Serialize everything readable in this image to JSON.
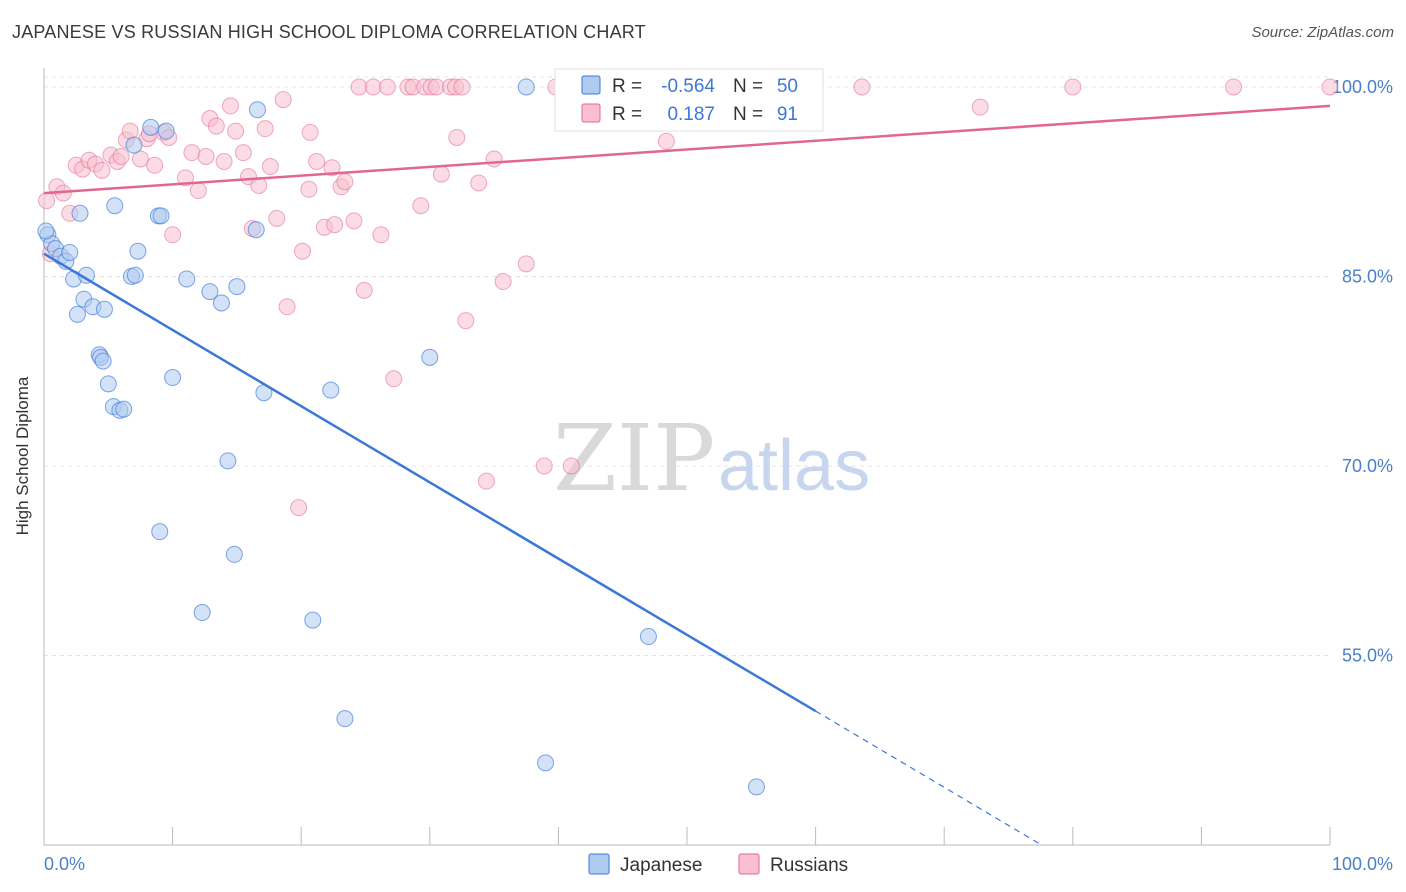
{
  "title": "JAPANESE VS RUSSIAN HIGH SCHOOL DIPLOMA CORRELATION CHART",
  "source": "Source: ZipAtlas.com",
  "colors": {
    "japanese": "#3b78d8",
    "russians": "#e2678f",
    "japanese_fill": "#aecbf0",
    "russians_fill": "#f7bfd0",
    "tick": "#4a7fc9"
  },
  "legend": {
    "rows": [
      {
        "label_r": "R =",
        "r": "-0.564",
        "label_n": "N =",
        "n": "50"
      },
      {
        "label_r": "R =",
        "r": "0.187",
        "label_n": "N =",
        "n": "91"
      }
    ],
    "bottom": [
      "Japanese",
      "Russians"
    ]
  },
  "watermark": {
    "zip": "ZIP",
    "atlas": "atlas"
  },
  "chart_data": {
    "type": "scatter",
    "ylabel": "High School Diploma",
    "xlabel": "",
    "xlim": [
      0,
      100
    ],
    "ylim": [
      40,
      101.5
    ],
    "x_tick_labels": [
      "0.0%",
      "100.0%"
    ],
    "y_ticks": [
      55,
      70,
      85,
      100
    ],
    "y_tick_labels": [
      "55.0%",
      "70.0%",
      "85.0%",
      "100.0%"
    ],
    "grid": true,
    "series": [
      {
        "name": "Japanese",
        "trend": {
          "x0": 0,
          "y0": 86.8,
          "x1": 60,
          "y1": 50.6,
          "x_dash_end": 77.5
        },
        "points": [
          [
            0.3,
            88.3
          ],
          [
            0.6,
            87.6
          ],
          [
            0.9,
            87.2
          ],
          [
            1.3,
            86.6
          ],
          [
            1.7,
            86.2
          ],
          [
            2.0,
            86.9
          ],
          [
            2.3,
            84.8
          ],
          [
            2.6,
            82.0
          ],
          [
            2.8,
            90.0
          ],
          [
            3.3,
            85.1
          ],
          [
            3.1,
            83.2
          ],
          [
            3.8,
            82.6
          ],
          [
            4.3,
            78.8
          ],
          [
            4.4,
            78.6
          ],
          [
            4.6,
            78.3
          ],
          [
            4.7,
            82.4
          ],
          [
            5.0,
            76.5
          ],
          [
            5.5,
            90.6
          ],
          [
            5.4,
            74.7
          ],
          [
            5.9,
            74.4
          ],
          [
            6.2,
            74.5
          ],
          [
            6.8,
            85.0
          ],
          [
            7.1,
            85.1
          ],
          [
            7.3,
            87.0
          ],
          [
            7.0,
            95.4
          ],
          [
            8.3,
            96.8
          ],
          [
            8.9,
            89.8
          ],
          [
            9.1,
            89.8
          ],
          [
            9.5,
            96.5
          ],
          [
            9.0,
            64.8
          ],
          [
            10.0,
            77.0
          ],
          [
            11.1,
            84.8
          ],
          [
            12.3,
            58.4
          ],
          [
            12.9,
            83.8
          ],
          [
            13.8,
            82.9
          ],
          [
            14.3,
            70.4
          ],
          [
            14.8,
            63.0
          ],
          [
            15.0,
            84.2
          ],
          [
            16.5,
            88.7
          ],
          [
            16.6,
            98.2
          ],
          [
            17.1,
            75.8
          ],
          [
            20.9,
            57.8
          ],
          [
            22.3,
            76.0
          ],
          [
            23.4,
            50.0
          ],
          [
            30.0,
            78.6
          ],
          [
            37.5,
            100.0
          ],
          [
            39.0,
            46.5
          ],
          [
            47.0,
            56.5
          ],
          [
            55.4,
            44.6
          ],
          [
            0.15,
            88.6
          ]
        ]
      },
      {
        "name": "Russians",
        "trend": {
          "x0": 0,
          "y0": 91.6,
          "x1": 100,
          "y1": 98.5
        },
        "points": [
          [
            0.2,
            91.0
          ],
          [
            0.5,
            86.8
          ],
          [
            1.0,
            92.1
          ],
          [
            1.5,
            91.6
          ],
          [
            2.0,
            90.0
          ],
          [
            2.5,
            93.8
          ],
          [
            3.0,
            93.5
          ],
          [
            3.5,
            94.2
          ],
          [
            4.0,
            93.9
          ],
          [
            4.5,
            93.4
          ],
          [
            5.2,
            94.6
          ],
          [
            5.7,
            94.1
          ],
          [
            6.0,
            94.5
          ],
          [
            6.4,
            95.8
          ],
          [
            6.7,
            96.5
          ],
          [
            7.5,
            94.3
          ],
          [
            8.0,
            95.9
          ],
          [
            8.2,
            96.3
          ],
          [
            8.6,
            93.8
          ],
          [
            9.3,
            96.4
          ],
          [
            9.7,
            96.0
          ],
          [
            10.0,
            88.3
          ],
          [
            11.0,
            92.8
          ],
          [
            11.5,
            94.8
          ],
          [
            12.0,
            91.8
          ],
          [
            12.6,
            94.5
          ],
          [
            12.9,
            97.5
          ],
          [
            13.4,
            96.9
          ],
          [
            14.0,
            94.1
          ],
          [
            14.5,
            98.5
          ],
          [
            14.9,
            96.5
          ],
          [
            15.5,
            94.8
          ],
          [
            15.9,
            92.9
          ],
          [
            16.2,
            88.8
          ],
          [
            16.7,
            92.2
          ],
          [
            17.2,
            96.7
          ],
          [
            17.6,
            93.7
          ],
          [
            18.1,
            89.6
          ],
          [
            18.6,
            99.0
          ],
          [
            18.9,
            82.6
          ],
          [
            19.8,
            66.7
          ],
          [
            20.1,
            87.0
          ],
          [
            20.6,
            91.9
          ],
          [
            20.7,
            96.4
          ],
          [
            21.2,
            94.1
          ],
          [
            21.8,
            88.9
          ],
          [
            22.4,
            93.6
          ],
          [
            22.6,
            89.1
          ],
          [
            23.1,
            92.1
          ],
          [
            23.4,
            92.5
          ],
          [
            24.1,
            89.4
          ],
          [
            24.5,
            100.0
          ],
          [
            24.9,
            83.9
          ],
          [
            25.6,
            100.0
          ],
          [
            26.2,
            88.3
          ],
          [
            26.7,
            100.0
          ],
          [
            27.2,
            76.9
          ],
          [
            28.3,
            100.0
          ],
          [
            28.7,
            100.0
          ],
          [
            29.3,
            90.6
          ],
          [
            29.6,
            100.0
          ],
          [
            30.1,
            100.0
          ],
          [
            30.5,
            100.0
          ],
          [
            30.9,
            93.1
          ],
          [
            31.6,
            100.0
          ],
          [
            32.0,
            100.0
          ],
          [
            32.5,
            100.0
          ],
          [
            32.1,
            96.0
          ],
          [
            32.8,
            81.5
          ],
          [
            33.8,
            92.4
          ],
          [
            34.4,
            68.8
          ],
          [
            35.0,
            94.3
          ],
          [
            35.7,
            84.6
          ],
          [
            37.5,
            86.0
          ],
          [
            38.9,
            70.0
          ],
          [
            39.8,
            100.0
          ],
          [
            41.0,
            70.0
          ],
          [
            43.0,
            100.0
          ],
          [
            45.0,
            100.0
          ],
          [
            46.9,
            100.0
          ],
          [
            48.4,
            95.7
          ],
          [
            50.0,
            100.0
          ],
          [
            51.3,
            100.0
          ],
          [
            52.2,
            100.0
          ],
          [
            55.8,
            100.0
          ],
          [
            59.9,
            100.0
          ],
          [
            63.6,
            100.0
          ],
          [
            72.8,
            98.4
          ],
          [
            80.0,
            100.0
          ],
          [
            92.5,
            100.0
          ],
          [
            100.0,
            100.0
          ]
        ]
      }
    ]
  }
}
